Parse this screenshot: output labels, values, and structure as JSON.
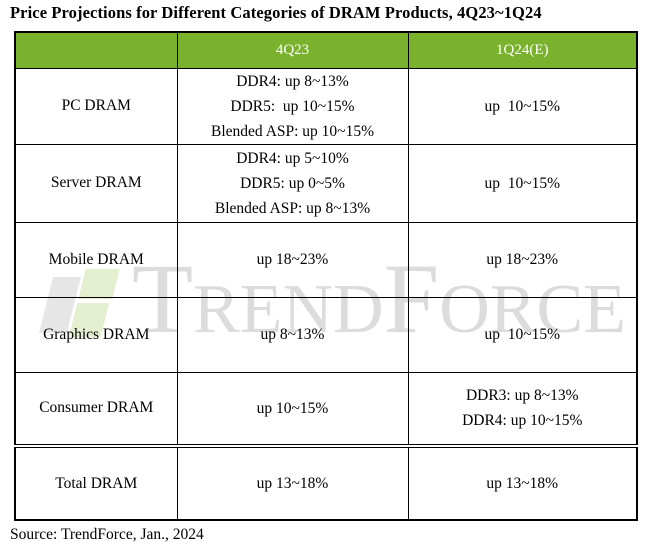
{
  "colors": {
    "header_green": "#7AB22D",
    "border_black": "#000000",
    "watermark_gray": "#dcdcdc",
    "watermark_green": "#e4efd0"
  },
  "watermark": {
    "text": "TrendForce",
    "logo": "trendforce-logo"
  },
  "source": "Source: TrendForce, Jan., 2024",
  "chart_data": {
    "type": "table",
    "title": "Price Projections for Different Categories of DRAM Products, 4Q23~1Q24",
    "columns": [
      "",
      "4Q23",
      "1Q24(E)"
    ],
    "rows": [
      {
        "category": "PC DRAM",
        "values": [
          [
            "DDR4: up 8~13%",
            "DDR5:  up 10~15%",
            "Blended ASP: up 10~15%"
          ],
          [
            "up  10~15%"
          ]
        ]
      },
      {
        "category": "Server DRAM",
        "values": [
          [
            "DDR4: up 5~10%",
            "DDR5: up 0~5%",
            "Blended ASP: up 8~13%"
          ],
          [
            "up  10~15%"
          ]
        ]
      },
      {
        "category": "Mobile DRAM",
        "values": [
          [
            "up 18~23%"
          ],
          [
            "up 18~23%"
          ]
        ]
      },
      {
        "category": "Graphics DRAM",
        "values": [
          [
            "up 8~13%"
          ],
          [
            "up  10~15%"
          ]
        ]
      },
      {
        "category": "Consumer DRAM",
        "values": [
          [
            "up 10~15%"
          ],
          [
            "DDR3: up 8~13%",
            "DDR4: up 10~15%"
          ]
        ]
      },
      {
        "category": "Total DRAM",
        "values": [
          [
            "up 13~18%"
          ],
          [
            "up 13~18%"
          ]
        ]
      }
    ],
    "layout": {
      "legend": false,
      "grid": true,
      "source_note": "Source: TrendForce, Jan., 2024"
    }
  }
}
